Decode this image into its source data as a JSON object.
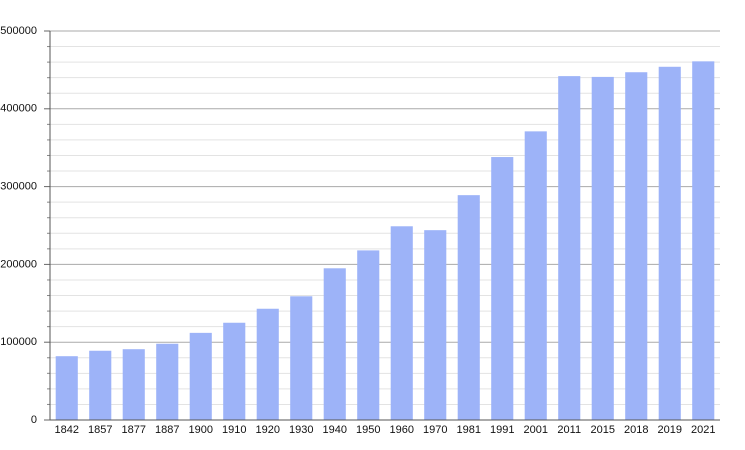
{
  "chart_data": {
    "type": "bar",
    "categories": [
      "1842",
      "1857",
      "1877",
      "1887",
      "1900",
      "1910",
      "1920",
      "1930",
      "1940",
      "1950",
      "1960",
      "1970",
      "1981",
      "1991",
      "2001",
      "2011",
      "2015",
      "2018",
      "2019",
      "2021"
    ],
    "values": [
      82000,
      89000,
      91000,
      98000,
      112000,
      125000,
      143000,
      159000,
      195000,
      218000,
      249000,
      244000,
      289000,
      338000,
      371000,
      442000,
      441000,
      447000,
      454000,
      461000
    ],
    "color": "#9db3f8",
    "ylim": [
      0,
      500000
    ],
    "yticks": [
      0,
      100000,
      200000,
      300000,
      400000,
      500000
    ],
    "minor_yticks": [
      20000,
      40000,
      60000,
      80000,
      120000,
      140000,
      160000,
      180000,
      220000,
      240000,
      260000,
      280000,
      320000,
      340000,
      360000,
      380000,
      420000,
      440000,
      460000,
      480000
    ],
    "grid": true
  }
}
